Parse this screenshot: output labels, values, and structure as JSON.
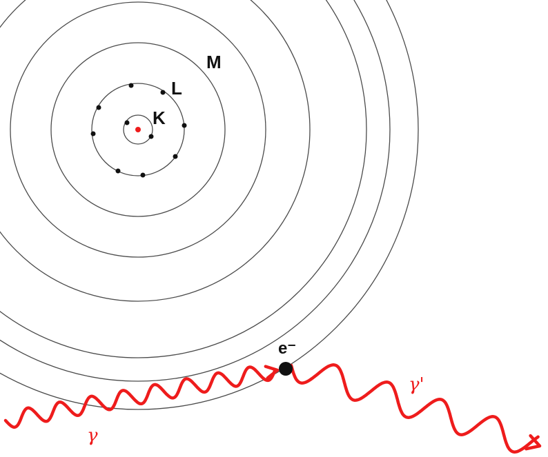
{
  "labels": {
    "shell_k": "K",
    "shell_l": "L",
    "shell_m": "M",
    "electron": "e⁻",
    "incident_photon": "γ",
    "scattered_photon": "γ'"
  },
  "colors": {
    "photon": "#ee1c1c",
    "nucleus": "#ee1c1c",
    "electron": "#111111",
    "shell": "#4a4a4a"
  },
  "shells": {
    "k_electrons": 2,
    "l_electrons": 8,
    "outer_shell_count": 7
  }
}
